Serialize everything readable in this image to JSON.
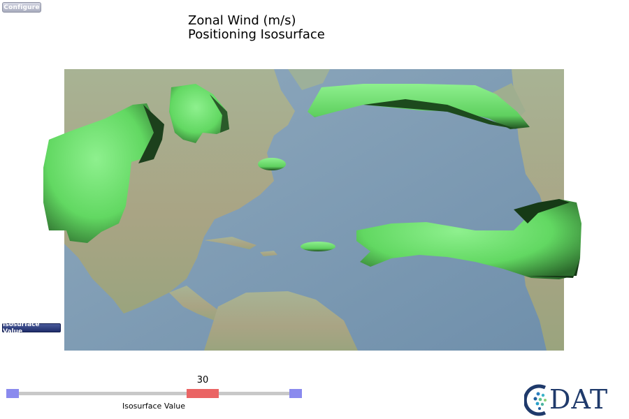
{
  "toolbar": {
    "configure_label": "Configure"
  },
  "plot": {
    "title_line1": "Zonal Wind (m/s)",
    "title_line2": "Positioning Isosurface"
  },
  "panel": {
    "isosurface_value_label": "Isosurface Value"
  },
  "slider": {
    "value": "30",
    "label": "Isosurface Value",
    "position_fraction": 0.62
  },
  "logo": {
    "text": "DAT",
    "alt": "CDAT"
  },
  "colors": {
    "isosurface": "#6fe06f",
    "slider_handle": "#ea6464",
    "slider_ends": "#8a8aee",
    "ocean": "#7d9bb3"
  }
}
